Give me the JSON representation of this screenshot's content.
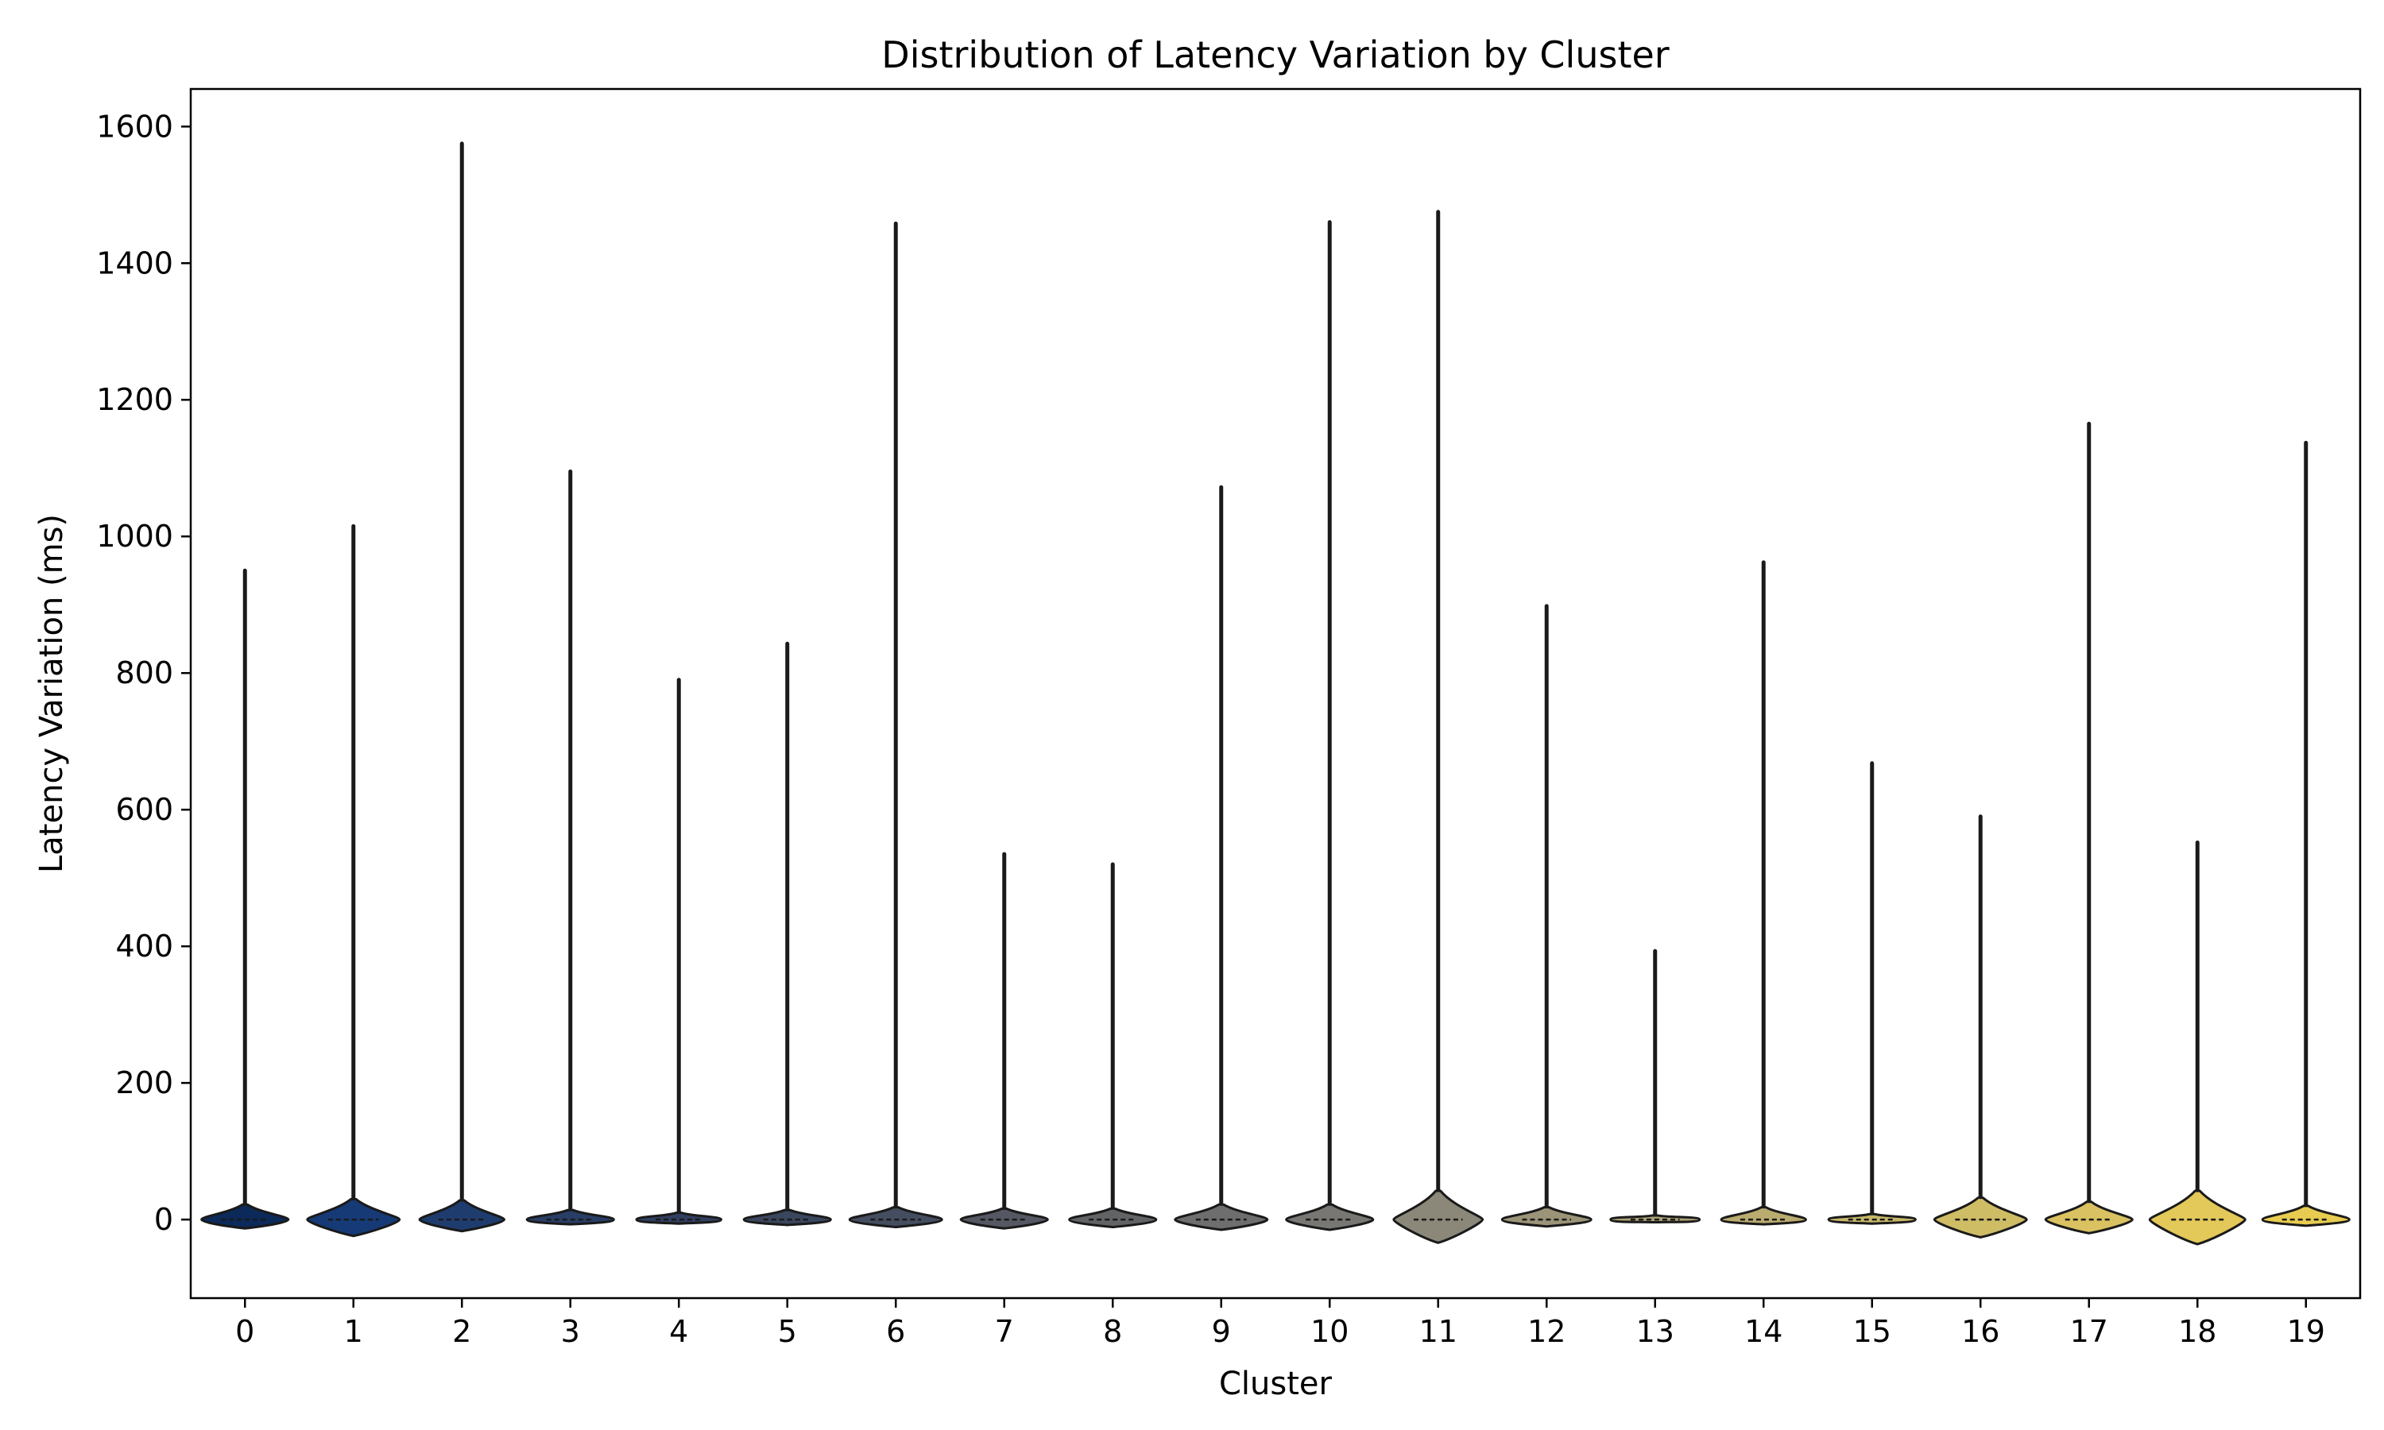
{
  "chart_data": {
    "type": "violin",
    "title": "Distribution of Latency Variation by Cluster",
    "xlabel": "Cluster",
    "ylabel": "Latency Variation (ms)",
    "ylim": [
      -115,
      1655
    ],
    "yticks": [
      0,
      200,
      400,
      600,
      800,
      1000,
      1200,
      1400,
      1600
    ],
    "grid": false,
    "legend": "none",
    "categories": [
      "0",
      "1",
      "2",
      "3",
      "4",
      "5",
      "6",
      "7",
      "8",
      "9",
      "10",
      "11",
      "12",
      "13",
      "14",
      "15",
      "16",
      "17",
      "18",
      "19"
    ],
    "max_values": [
      950,
      1015,
      1575,
      1095,
      790,
      843,
      1458,
      535,
      520,
      1072,
      1460,
      1475,
      898,
      393,
      962,
      668,
      590,
      1165,
      552,
      1137
    ],
    "min_values": [
      -13,
      -24,
      -17,
      -7,
      -6,
      -8,
      -11,
      -13,
      -11,
      -15,
      -15,
      -34,
      -10,
      -4,
      -7,
      -6,
      -26,
      -20,
      -36,
      -9
    ],
    "upper_body": [
      22,
      30,
      28,
      14,
      10,
      14,
      18,
      16,
      16,
      22,
      22,
      42,
      18,
      6,
      18,
      8,
      32,
      26,
      42,
      20
    ],
    "body_width_fraction": [
      0.8,
      0.85,
      0.78,
      0.8,
      0.78,
      0.8,
      0.85,
      0.8,
      0.8,
      0.85,
      0.8,
      0.82,
      0.82,
      0.82,
      0.78,
      0.8,
      0.85,
      0.8,
      0.88,
      0.8
    ],
    "colors": [
      "#0b2a5a",
      "#153a75",
      "#1f3c6e",
      "#283e66",
      "#303f60",
      "#3a465d",
      "#454d60",
      "#555862",
      "#626365",
      "#6e6e6e",
      "#787774",
      "#8b8779",
      "#9b9478",
      "#aba175",
      "#baab6f",
      "#c8b76a",
      "#cfbd66",
      "#dac262",
      "#e3c85a",
      "#e8cc50"
    ],
    "line_color": "#1a1a1a"
  }
}
